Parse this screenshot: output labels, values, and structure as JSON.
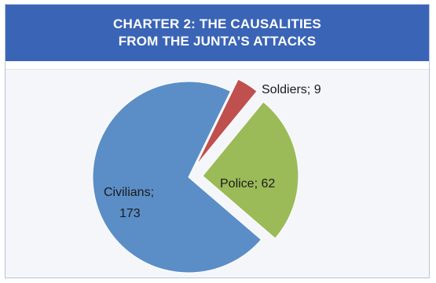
{
  "chart_data": {
    "type": "pie",
    "title_lines": [
      "CHARTER 2: THE CAUSALITIES",
      "FROM THE JUNTA’S ATTACKS"
    ],
    "slices": [
      {
        "category": "Soldiers",
        "value": 9,
        "color": "#c0504d",
        "label_text": "Soldiers; 9",
        "exploded": true
      },
      {
        "category": "Police",
        "value": 62,
        "color": "#9bbb59",
        "label_text": "Police; 62",
        "exploded": true
      },
      {
        "category": "Civilians",
        "value": 173,
        "color": "#5b8ec7",
        "label_lines": [
          "Civilians;",
          "173"
        ],
        "exploded": false
      }
    ],
    "legend": "none"
  }
}
